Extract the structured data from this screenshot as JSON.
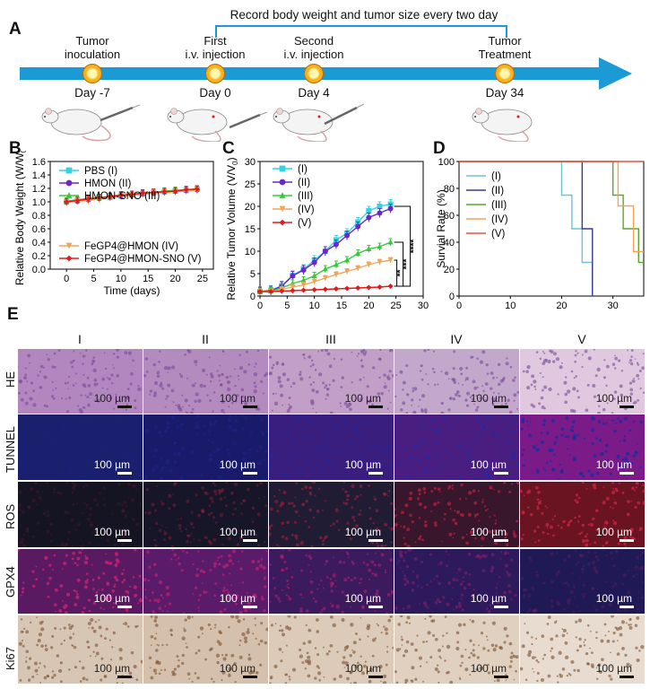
{
  "panels": {
    "A": "A",
    "B": "B",
    "C": "C",
    "D": "D",
    "E": "E"
  },
  "timeline": {
    "record_note": "Record body weight and tumor size every two day",
    "events": [
      {
        "line1": "Tumor",
        "line2": "inoculation",
        "day": "Day -7"
      },
      {
        "line1": "First",
        "line2": "i.v. injection",
        "day": "Day 0"
      },
      {
        "line1": "Second",
        "line2": "i.v. injection",
        "day": "Day 4"
      },
      {
        "line1": "Tumor",
        "line2": "Treatment",
        "day": "Day 34"
      }
    ],
    "arrow_color": "#1b9ad6"
  },
  "chart_data": [
    {
      "id": "B",
      "type": "line",
      "title": "",
      "xlabel": "Time (days)",
      "ylabel": "Relative Body Weight (W/W",
      "ylabel_sub": "0",
      "ylabel_end": ")",
      "xlim": [
        -3,
        27
      ],
      "ylim": [
        0,
        1.6
      ],
      "xticks": [
        0,
        5,
        10,
        15,
        20,
        25
      ],
      "yticks": [
        0.0,
        0.2,
        0.4,
        0.6,
        0.8,
        1.0,
        1.2,
        1.4,
        1.6
      ],
      "ytick_labels": [
        "0.0",
        "0.2",
        "0.4",
        "0.6",
        "0.8",
        "1.0",
        "1.2",
        "1.4",
        "1.6"
      ],
      "x": [
        0,
        2,
        4,
        6,
        8,
        10,
        12,
        14,
        16,
        18,
        20,
        22,
        24
      ],
      "series": [
        {
          "name": "PBS (I)",
          "color": "#34d2e6",
          "marker": "square",
          "values": [
            1.0,
            1.02,
            1.04,
            1.06,
            1.07,
            1.09,
            1.11,
            1.12,
            1.14,
            1.15,
            1.16,
            1.17,
            1.19
          ],
          "err": 0.05
        },
        {
          "name": "HMON (II)",
          "color": "#6a28c8",
          "marker": "circle",
          "values": [
            1.0,
            1.01,
            1.03,
            1.05,
            1.07,
            1.09,
            1.1,
            1.12,
            1.13,
            1.15,
            1.16,
            1.17,
            1.18
          ],
          "err": 0.05
        },
        {
          "name": "HMON-SNO (III)",
          "color": "#36c83a",
          "marker": "triangle",
          "values": [
            1.01,
            1.03,
            1.05,
            1.06,
            1.08,
            1.1,
            1.11,
            1.13,
            1.14,
            1.16,
            1.17,
            1.18,
            1.19
          ],
          "err": 0.05
        },
        {
          "name": "FeGP4@HMON (IV)",
          "color": "#f2a458",
          "marker": "tri-down",
          "values": [
            0.99,
            1.01,
            1.02,
            1.05,
            1.06,
            1.08,
            1.1,
            1.11,
            1.13,
            1.14,
            1.15,
            1.16,
            1.17
          ],
          "err": 0.05
        },
        {
          "name": "FeGP4@HMON-SNO (V)",
          "color": "#e31a1a",
          "marker": "diamond",
          "values": [
            1.0,
            1.02,
            1.04,
            1.06,
            1.08,
            1.1,
            1.11,
            1.13,
            1.14,
            1.15,
            1.16,
            1.18,
            1.19
          ],
          "err": 0.05
        }
      ],
      "legend_top": [
        "PBS (I)",
        "HMON (II)",
        "HMON-SNO (III)"
      ],
      "legend_bottom": [
        "FeGP4@HMON (IV)",
        "FeGP4@HMON-SNO (V)"
      ]
    },
    {
      "id": "C",
      "type": "line",
      "xlabel": "Time (days)",
      "ylabel": "Relative Tumor Volume (V/V",
      "ylabel_sub": "0",
      "ylabel_end": ")",
      "xlim": [
        0,
        30
      ],
      "ylim": [
        0,
        30
      ],
      "xticks": [
        0,
        5,
        10,
        15,
        20,
        25,
        30
      ],
      "yticks": [
        0,
        5,
        10,
        15,
        20,
        25,
        30
      ],
      "x": [
        0,
        2,
        4,
        6,
        8,
        10,
        12,
        14,
        16,
        18,
        20,
        22,
        24
      ],
      "series": [
        {
          "name": "(I)",
          "color": "#34d2e6",
          "marker": "square",
          "values": [
            1.0,
            1.3,
            2.3,
            4.6,
            6.0,
            8.0,
            10.0,
            12.5,
            14.0,
            16.5,
            19.0,
            20.0,
            20.5
          ],
          "err": 1.0
        },
        {
          "name": "(II)",
          "color": "#6a28c8",
          "marker": "circle",
          "values": [
            1.0,
            1.2,
            2.2,
            4.5,
            5.8,
            7.5,
            10.0,
            11.5,
            13.5,
            15.5,
            17.5,
            18.5,
            19.5
          ],
          "err": 1.0
        },
        {
          "name": "(III)",
          "color": "#36c83a",
          "marker": "triangle",
          "values": [
            1.0,
            1.1,
            1.8,
            2.8,
            3.5,
            4.5,
            6.0,
            7.0,
            8.0,
            9.5,
            10.5,
            11.0,
            12.0
          ],
          "err": 0.8
        },
        {
          "name": "(IV)",
          "color": "#f2a458",
          "marker": "tri-down",
          "values": [
            1.0,
            1.0,
            1.5,
            2.0,
            2.5,
            3.2,
            4.0,
            4.8,
            5.5,
            6.2,
            7.0,
            7.6,
            8.0
          ],
          "err": 0.6
        },
        {
          "name": "(V)",
          "color": "#e31a1a",
          "marker": "diamond",
          "values": [
            1.0,
            1.0,
            1.1,
            1.2,
            1.3,
            1.4,
            1.5,
            1.6,
            1.7,
            1.8,
            1.9,
            2.0,
            2.2
          ],
          "err": 0.2
        }
      ],
      "significance": [
        "****",
        "***",
        "**"
      ]
    },
    {
      "id": "D",
      "type": "line",
      "xlabel": "Time (days)",
      "ylabel": "Survial Rate (%)",
      "xlim": [
        0,
        36
      ],
      "ylim": [
        0,
        100
      ],
      "xticks": [
        0,
        10,
        20,
        30
      ],
      "yticks": [
        0,
        20,
        40,
        60,
        80,
        100
      ],
      "series": [
        {
          "name": "(I)",
          "color": "#6cc4d6",
          "steps": [
            [
              0,
              100
            ],
            [
              20,
              100
            ],
            [
              20,
              75
            ],
            [
              22,
              75
            ],
            [
              22,
              50
            ],
            [
              24,
              50
            ],
            [
              24,
              25
            ],
            [
              26,
              25
            ],
            [
              26,
              0
            ]
          ]
        },
        {
          "name": "(II)",
          "color": "#3a3a8e",
          "steps": [
            [
              0,
              100
            ],
            [
              24,
              100
            ],
            [
              24,
              50
            ],
            [
              26,
              50
            ],
            [
              26,
              0
            ]
          ]
        },
        {
          "name": "(III)",
          "color": "#5aa828",
          "steps": [
            [
              0,
              100
            ],
            [
              30,
              100
            ],
            [
              30,
              75
            ],
            [
              32,
              75
            ],
            [
              32,
              50
            ],
            [
              35,
              50
            ],
            [
              35,
              25
            ],
            [
              36,
              25
            ]
          ]
        },
        {
          "name": "(IV)",
          "color": "#f2a458",
          "steps": [
            [
              0,
              100
            ],
            [
              31,
              100
            ],
            [
              31,
              67
            ],
            [
              34,
              67
            ],
            [
              34,
              33
            ],
            [
              36,
              33
            ]
          ]
        },
        {
          "name": "(V)",
          "color": "#e0504a",
          "steps": [
            [
              0,
              100
            ],
            [
              36,
              100
            ]
          ]
        }
      ]
    }
  ],
  "panelE": {
    "columns": [
      "I",
      "II",
      "III",
      "IV",
      "V"
    ],
    "rows": [
      "HE",
      "TUNNEL",
      "ROS",
      "GPX4",
      "Ki67"
    ],
    "scale_text": "100 µm"
  }
}
